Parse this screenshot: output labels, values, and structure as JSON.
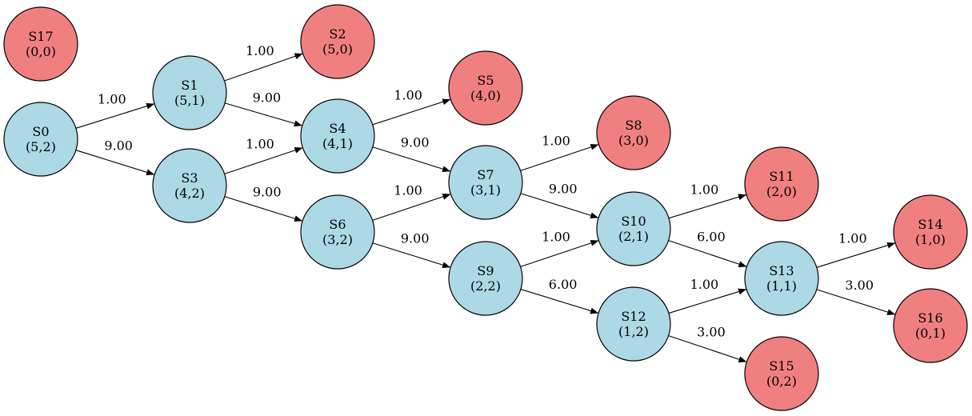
{
  "graph": {
    "colors": {
      "transient": "#add8e6",
      "absorbing": "#f08080",
      "edge": "#000000"
    },
    "nodes": [
      {
        "id": "S0",
        "state": "(5,2)",
        "kind": "transient"
      },
      {
        "id": "S1",
        "state": "(5,1)",
        "kind": "transient"
      },
      {
        "id": "S2",
        "state": "(5,0)",
        "kind": "absorbing"
      },
      {
        "id": "S3",
        "state": "(4,2)",
        "kind": "transient"
      },
      {
        "id": "S4",
        "state": "(4,1)",
        "kind": "transient"
      },
      {
        "id": "S5",
        "state": "(4,0)",
        "kind": "absorbing"
      },
      {
        "id": "S6",
        "state": "(3,2)",
        "kind": "transient"
      },
      {
        "id": "S7",
        "state": "(3,1)",
        "kind": "transient"
      },
      {
        "id": "S8",
        "state": "(3,0)",
        "kind": "absorbing"
      },
      {
        "id": "S9",
        "state": "(2,2)",
        "kind": "transient"
      },
      {
        "id": "S10",
        "state": "(2,1)",
        "kind": "transient"
      },
      {
        "id": "S11",
        "state": "(2,0)",
        "kind": "absorbing"
      },
      {
        "id": "S12",
        "state": "(1,2)",
        "kind": "transient"
      },
      {
        "id": "S13",
        "state": "(1,1)",
        "kind": "transient"
      },
      {
        "id": "S14",
        "state": "(1,0)",
        "kind": "absorbing"
      },
      {
        "id": "S15",
        "state": "(0,2)",
        "kind": "absorbing"
      },
      {
        "id": "S16",
        "state": "(0,1)",
        "kind": "absorbing"
      },
      {
        "id": "S17",
        "state": "(0,0)",
        "kind": "absorbing"
      }
    ],
    "edges": [
      {
        "from": "S0",
        "to": "S1",
        "weight": "1.00"
      },
      {
        "from": "S0",
        "to": "S3",
        "weight": "9.00"
      },
      {
        "from": "S1",
        "to": "S2",
        "weight": "1.00"
      },
      {
        "from": "S1",
        "to": "S4",
        "weight": "9.00"
      },
      {
        "from": "S3",
        "to": "S4",
        "weight": "1.00"
      },
      {
        "from": "S3",
        "to": "S6",
        "weight": "9.00"
      },
      {
        "from": "S4",
        "to": "S5",
        "weight": "1.00"
      },
      {
        "from": "S4",
        "to": "S7",
        "weight": "9.00"
      },
      {
        "from": "S6",
        "to": "S7",
        "weight": "1.00"
      },
      {
        "from": "S6",
        "to": "S9",
        "weight": "9.00"
      },
      {
        "from": "S7",
        "to": "S8",
        "weight": "1.00"
      },
      {
        "from": "S7",
        "to": "S10",
        "weight": "9.00"
      },
      {
        "from": "S9",
        "to": "S10",
        "weight": "1.00"
      },
      {
        "from": "S9",
        "to": "S12",
        "weight": "6.00"
      },
      {
        "from": "S10",
        "to": "S11",
        "weight": "1.00"
      },
      {
        "from": "S10",
        "to": "S13",
        "weight": "6.00"
      },
      {
        "from": "S12",
        "to": "S13",
        "weight": "1.00"
      },
      {
        "from": "S12",
        "to": "S15",
        "weight": "3.00"
      },
      {
        "from": "S13",
        "to": "S14",
        "weight": "1.00"
      },
      {
        "from": "S13",
        "to": "S16",
        "weight": "3.00"
      }
    ]
  }
}
